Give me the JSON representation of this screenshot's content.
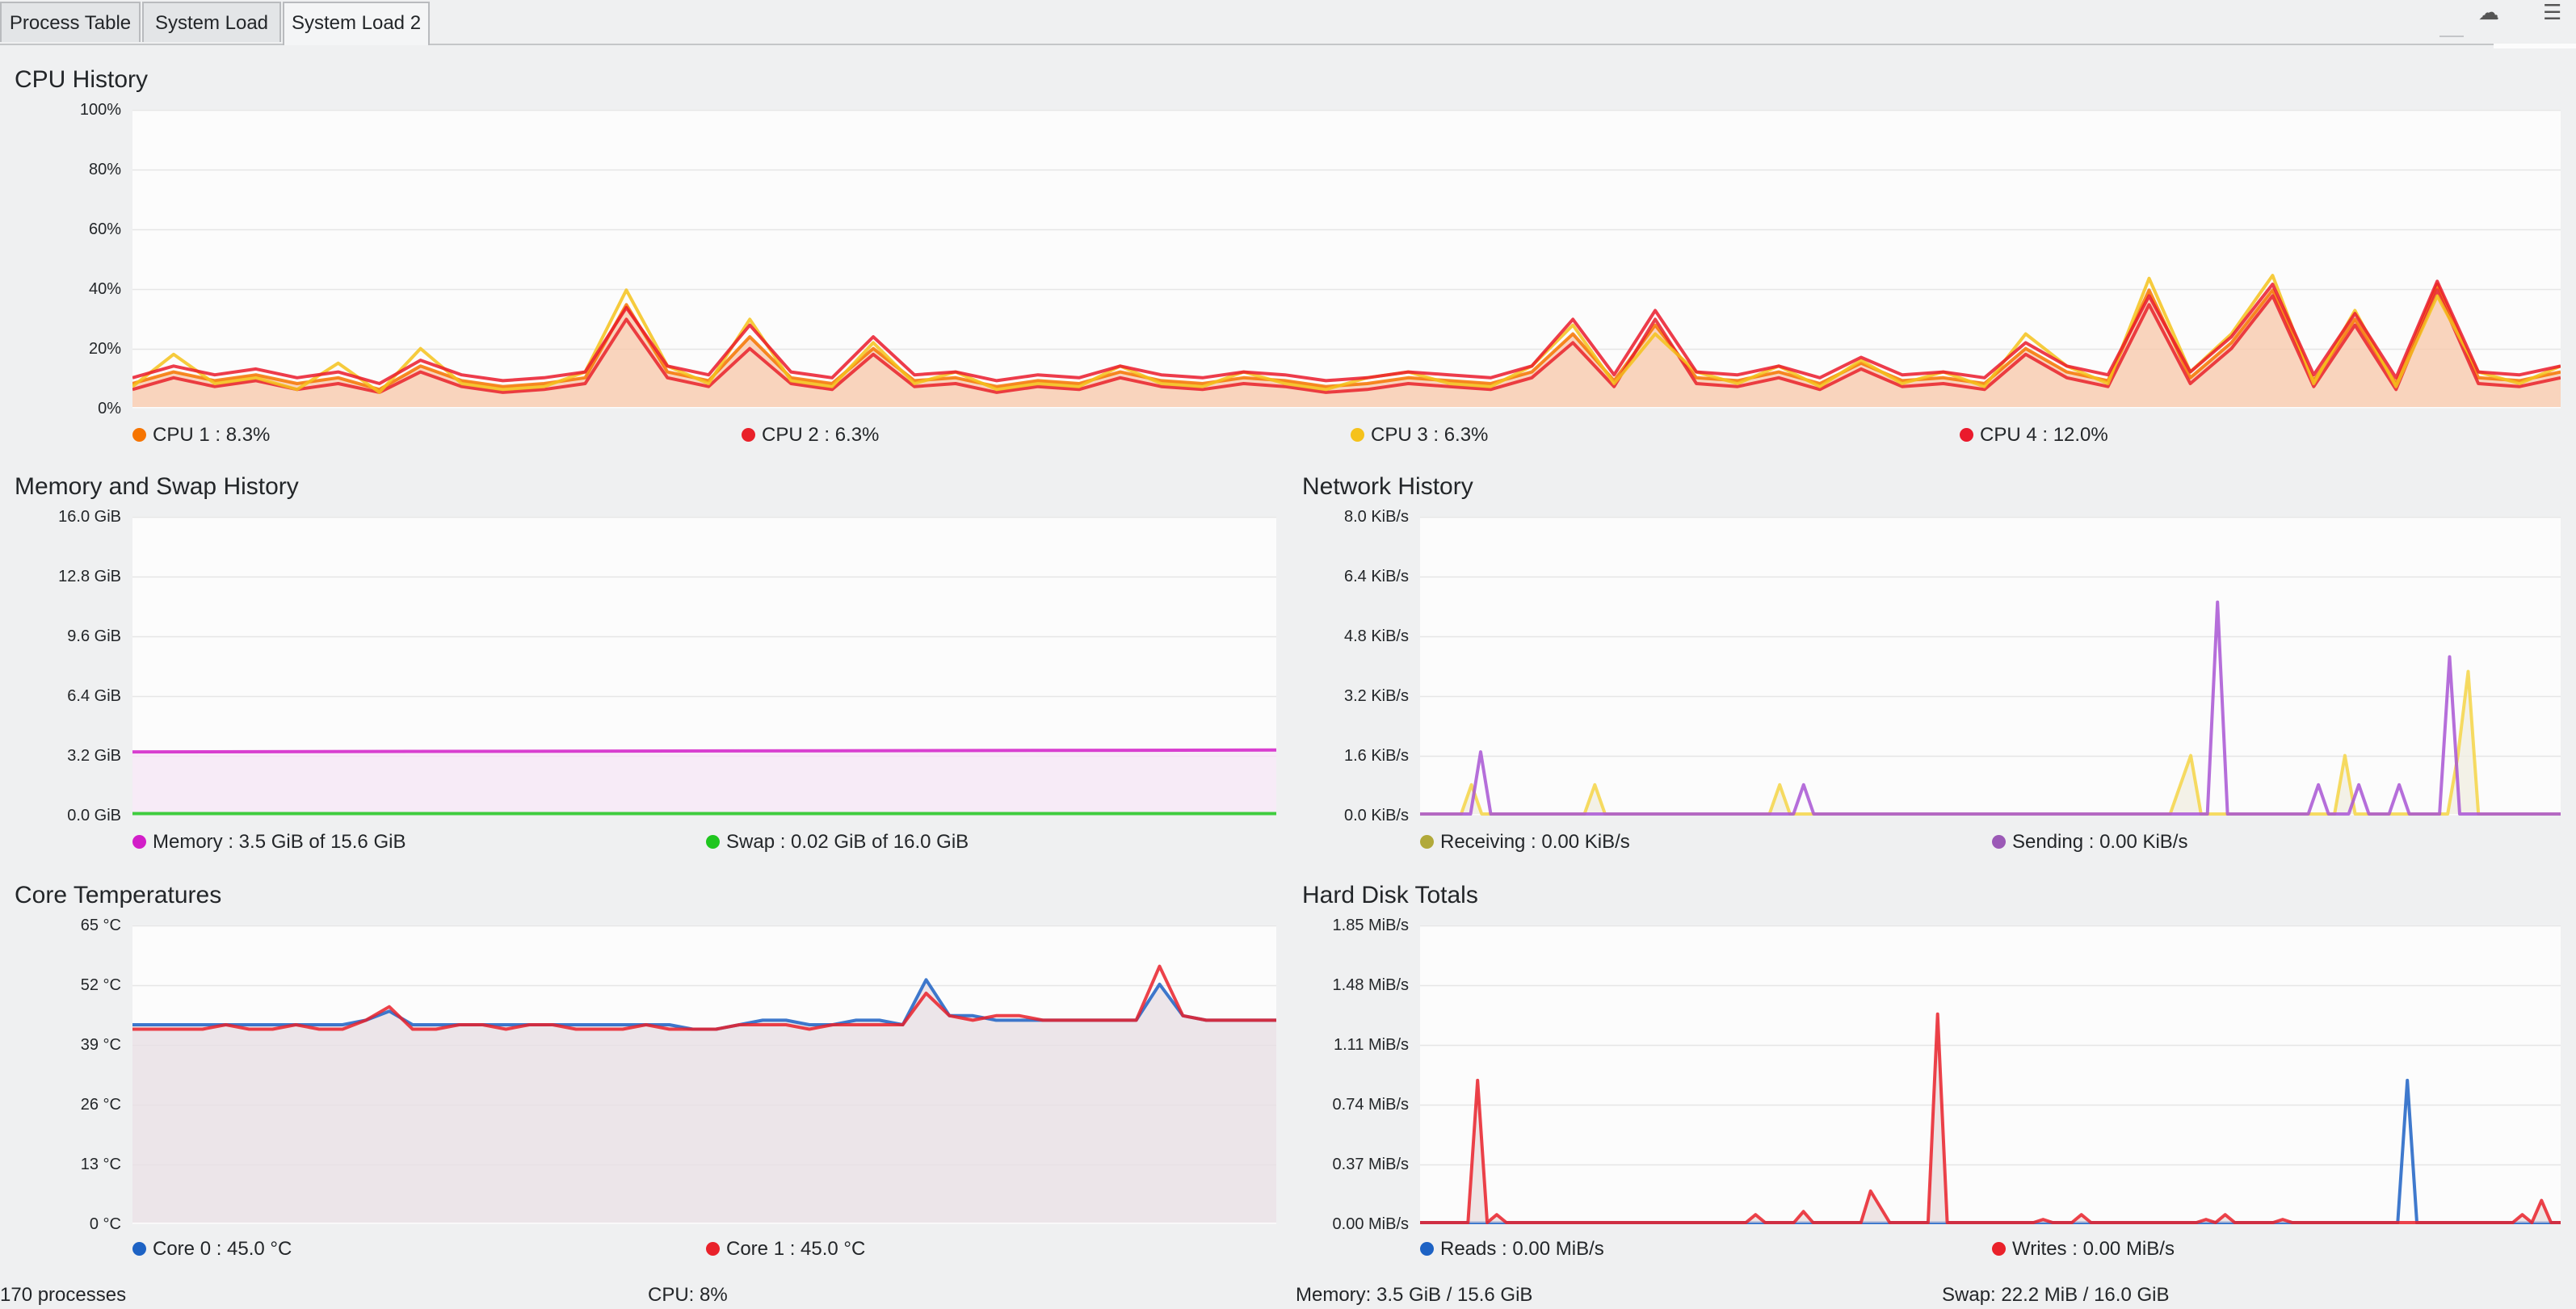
{
  "tabs": [
    {
      "label": "Process Table",
      "active": false
    },
    {
      "label": "System Load",
      "active": false
    },
    {
      "label": "System Load 2",
      "active": true
    }
  ],
  "cpu_history": {
    "title": "CPU History",
    "y_labels": [
      "100%",
      "80%",
      "60%",
      "40%",
      "20%",
      "0%"
    ],
    "legend": [
      {
        "label": "CPU 1 : 8.3%",
        "color": "#f67400"
      },
      {
        "label": "CPU 2 : 6.3%",
        "color": "#e9212a"
      },
      {
        "label": "CPU 3 : 6.3%",
        "color": "#f5c21b"
      },
      {
        "label": "CPU 4 : 12.0%",
        "color": "#ea1a2c"
      }
    ]
  },
  "memory_history": {
    "title": "Memory and Swap History",
    "y_labels": [
      "16.0 GiB",
      "12.8 GiB",
      "9.6 GiB",
      "6.4 GiB",
      "3.2 GiB",
      "0.0 GiB"
    ],
    "legend": [
      {
        "label": "Memory : 3.5 GiB of 15.6 GiB",
        "color": "#d21ec8"
      },
      {
        "label": "Swap : 0.02 GiB of 16.0 GiB",
        "color": "#1fc61f"
      }
    ]
  },
  "network_history": {
    "title": "Network History",
    "y_labels": [
      "8.0 KiB/s",
      "6.4 KiB/s",
      "4.8 KiB/s",
      "3.2 KiB/s",
      "1.6 KiB/s",
      "0.0 KiB/s"
    ],
    "legend": [
      {
        "label": "Receiving : 0.00 KiB/s",
        "color": "#b1a93a"
      },
      {
        "label": "Sending : 0.00 KiB/s",
        "color": "#9b59b6"
      }
    ]
  },
  "core_temperatures": {
    "title": "Core Temperatures",
    "y_labels": [
      "65 °C",
      "52 °C",
      "39 °C",
      "26 °C",
      "13 °C",
      "0 °C"
    ],
    "legend": [
      {
        "label": "Core 0 : 45.0 °C",
        "color": "#1d62c4"
      },
      {
        "label": "Core 1 : 45.0 °C",
        "color": "#e9212a"
      }
    ]
  },
  "hard_disk_totals": {
    "title": "Hard Disk Totals",
    "y_labels": [
      "1.85 MiB/s",
      "1.48 MiB/s",
      "1.11 MiB/s",
      "0.74 MiB/s",
      "0.37 MiB/s",
      "0.00 MiB/s"
    ],
    "legend": [
      {
        "label": "Reads : 0.00 MiB/s",
        "color": "#1d62c4"
      },
      {
        "label": "Writes : 0.00 MiB/s",
        "color": "#e9212a"
      }
    ]
  },
  "status_bar": {
    "processes": "170 processes",
    "cpu": "CPU: 8%",
    "memory": "Memory: 3.5 GiB / 15.6 GiB",
    "swap": "Swap: 22.2 MiB / 16.0 GiB"
  },
  "chart_data": [
    {
      "type": "line",
      "title": "CPU History",
      "ylim": [
        0,
        100
      ],
      "y_unit": "%",
      "x_count": 60,
      "grid": true,
      "series": [
        {
          "name": "CPU 1 : 8.3%",
          "color": "#f67400",
          "fill": "#f8c7a8",
          "values": [
            8,
            12,
            9,
            11,
            8,
            10,
            6,
            14,
            9,
            7,
            8,
            10,
            35,
            12,
            9,
            24,
            10,
            8,
            20,
            9,
            10,
            7,
            9,
            8,
            12,
            9,
            8,
            10,
            9,
            7,
            8,
            10,
            9,
            8,
            12,
            25,
            9,
            28,
            10,
            9,
            12,
            8,
            15,
            9,
            10,
            8,
            20,
            12,
            9,
            40,
            10,
            22,
            40,
            9,
            30,
            8,
            42,
            10,
            9,
            12
          ]
        },
        {
          "name": "CPU 2 : 6.3%",
          "color": "#e9212a",
          "fill": "none",
          "values": [
            6,
            10,
            7,
            9,
            6,
            8,
            5,
            12,
            7,
            5,
            6,
            8,
            30,
            10,
            7,
            20,
            8,
            6,
            18,
            7,
            8,
            5,
            7,
            6,
            10,
            7,
            6,
            8,
            7,
            5,
            6,
            8,
            7,
            6,
            10,
            22,
            7,
            30,
            8,
            7,
            10,
            6,
            13,
            7,
            8,
            6,
            18,
            10,
            7,
            35,
            8,
            20,
            38,
            7,
            28,
            6,
            40,
            8,
            7,
            10
          ]
        },
        {
          "name": "CPU 3 : 6.3%",
          "color": "#f5c21b",
          "fill": "none",
          "values": [
            7,
            18,
            8,
            10,
            6,
            15,
            5,
            20,
            8,
            6,
            7,
            12,
            40,
            14,
            8,
            30,
            9,
            7,
            22,
            8,
            12,
            6,
            8,
            7,
            14,
            8,
            7,
            12,
            8,
            6,
            10,
            12,
            8,
            7,
            14,
            28,
            8,
            25,
            12,
            8,
            14,
            7,
            16,
            8,
            12,
            7,
            25,
            14,
            8,
            44,
            12,
            25,
            45,
            8,
            33,
            7,
            38,
            12,
            8,
            14
          ]
        },
        {
          "name": "CPU 4 : 12.0%",
          "color": "#ea1a2c",
          "fill": "none",
          "values": [
            10,
            14,
            11,
            13,
            10,
            12,
            8,
            16,
            11,
            9,
            10,
            12,
            34,
            14,
            11,
            28,
            12,
            10,
            24,
            11,
            12,
            9,
            11,
            10,
            14,
            11,
            10,
            12,
            11,
            9,
            10,
            12,
            11,
            10,
            14,
            30,
            11,
            33,
            12,
            11,
            14,
            10,
            17,
            11,
            12,
            10,
            22,
            14,
            11,
            38,
            12,
            24,
            42,
            11,
            32,
            10,
            43,
            12,
            11,
            14
          ]
        }
      ]
    },
    {
      "type": "area",
      "title": "Memory and Swap History",
      "ylim": [
        0,
        16
      ],
      "y_unit": "GiB",
      "x_count": 2,
      "grid": true,
      "series": [
        {
          "name": "Memory : 3.5 GiB of 15.6 GiB",
          "color": "#d21ec8",
          "fill": "#f5e6f6",
          "values": [
            3.4,
            3.5
          ]
        },
        {
          "name": "Swap : 0.02 GiB of 16.0 GiB",
          "color": "#1fc61f",
          "fill": "none",
          "values": [
            0.02,
            0.02
          ]
        }
      ]
    },
    {
      "type": "line",
      "title": "Network History",
      "ylim": [
        0,
        8
      ],
      "y_unit": "KiB/s",
      "x_count": 110,
      "grid": true,
      "series": [
        {
          "name": "Receiving : 0.00 KiB/s",
          "color": "#f5d547",
          "fill": "#f0ede0",
          "values": [
            0,
            0,
            0,
            0,
            0,
            0.8,
            0,
            0,
            0,
            0,
            0,
            0,
            0,
            0,
            0,
            0,
            0,
            0.8,
            0,
            0,
            0,
            0,
            0,
            0,
            0,
            0,
            0,
            0,
            0,
            0,
            0,
            0,
            0,
            0,
            0,
            0.8,
            0,
            0,
            0,
            0,
            0,
            0,
            0,
            0,
            0,
            0,
            0,
            0,
            0,
            0,
            0,
            0,
            0,
            0,
            0,
            0,
            0,
            0,
            0,
            0,
            0,
            0,
            0,
            0,
            0,
            0,
            0,
            0,
            0,
            0,
            0,
            0,
            0,
            0,
            0.8,
            1.6,
            0,
            0,
            0,
            0,
            0,
            0,
            0,
            0,
            0,
            0,
            0,
            0,
            0,
            0,
            1.6,
            0,
            0,
            0,
            0,
            0,
            0,
            0,
            0,
            0,
            0,
            1.6,
            3.9,
            0,
            0,
            0,
            0,
            0,
            0,
            0,
            0,
            0
          ]
        },
        {
          "name": "Sending : 0.00 KiB/s",
          "color": "#a855d4",
          "fill": "none",
          "values": [
            0,
            0,
            0,
            0,
            0,
            0,
            1.7,
            0,
            0,
            0,
            0,
            0,
            0,
            0,
            0,
            0,
            0,
            0,
            0,
            0,
            0,
            0,
            0,
            0,
            0,
            0,
            0,
            0,
            0,
            0,
            0,
            0,
            0,
            0,
            0,
            0,
            0,
            0,
            0.8,
            0,
            0,
            0,
            0,
            0,
            0,
            0,
            0,
            0,
            0,
            0,
            0,
            0,
            0,
            0,
            0,
            0,
            0,
            0,
            0,
            0,
            0,
            0,
            0,
            0,
            0,
            0,
            0,
            0,
            0,
            0,
            0,
            0,
            0,
            0,
            0,
            0,
            0,
            0,
            0,
            5.8,
            0,
            0,
            0,
            0,
            0,
            0,
            0,
            0,
            0,
            0.8,
            0,
            0,
            0,
            0.8,
            0,
            0,
            0,
            0.8,
            0,
            0,
            0,
            0,
            4.3,
            0,
            0,
            0,
            0,
            0,
            0,
            0,
            0,
            0,
            0,
            0
          ]
        }
      ]
    },
    {
      "type": "area",
      "title": "Core Temperatures",
      "ylim": [
        0,
        65
      ],
      "y_unit": "°C",
      "x_count": 50,
      "grid": true,
      "series": [
        {
          "name": "Core 0 : 45.0 °C",
          "color": "#1d62c4",
          "fill": "#e7dde3",
          "values": [
            44,
            44,
            44,
            44,
            44,
            44,
            44,
            44,
            44,
            44,
            45,
            47,
            44,
            44,
            44,
            44,
            44,
            44,
            44,
            44,
            44,
            44,
            44,
            44,
            43,
            43,
            44,
            45,
            45,
            44,
            44,
            45,
            45,
            44,
            54,
            46,
            46,
            45,
            45,
            45,
            45,
            45,
            45,
            45,
            53,
            46,
            45,
            45,
            45,
            45
          ]
        },
        {
          "name": "Core 1 : 45.0 °C",
          "color": "#e9212a",
          "fill": "none",
          "values": [
            43,
            43,
            43,
            43,
            44,
            43,
            43,
            44,
            43,
            43,
            45,
            48,
            43,
            43,
            44,
            44,
            43,
            44,
            44,
            43,
            43,
            43,
            44,
            43,
            43,
            43,
            44,
            44,
            44,
            43,
            44,
            44,
            44,
            44,
            51,
            46,
            45,
            46,
            46,
            45,
            45,
            45,
            45,
            45,
            57,
            46,
            45,
            45,
            45,
            45
          ]
        }
      ]
    },
    {
      "type": "line",
      "title": "Hard Disk Totals",
      "ylim": [
        0,
        1.85
      ],
      "y_unit": "MiB/s",
      "x_count": 120,
      "grid": true,
      "series": [
        {
          "name": "Reads : 0.00 MiB/s",
          "color": "#1d62c4",
          "fill": "none",
          "values": [
            0,
            0,
            0,
            0,
            0,
            0,
            0,
            0,
            0,
            0,
            0,
            0,
            0,
            0,
            0,
            0,
            0,
            0,
            0,
            0,
            0,
            0,
            0,
            0,
            0,
            0,
            0,
            0,
            0,
            0,
            0,
            0,
            0,
            0,
            0,
            0,
            0,
            0,
            0,
            0,
            0,
            0,
            0,
            0,
            0,
            0,
            0,
            0,
            0,
            0,
            0,
            0,
            0,
            0,
            0,
            0,
            0,
            0,
            0,
            0,
            0,
            0,
            0,
            0,
            0,
            0,
            0,
            0,
            0,
            0,
            0,
            0,
            0,
            0,
            0,
            0,
            0,
            0,
            0,
            0,
            0,
            0,
            0,
            0,
            0,
            0,
            0,
            0,
            0,
            0,
            0,
            0,
            0,
            0,
            0,
            0,
            0,
            0,
            0,
            0,
            0,
            0,
            0,
            0.9,
            0,
            0,
            0,
            0,
            0,
            0,
            0,
            0,
            0,
            0,
            0,
            0,
            0,
            0,
            0,
            0
          ]
        },
        {
          "name": "Writes : 0.00 MiB/s",
          "color": "#e9212a",
          "fill": "#eadcdc",
          "values": [
            0,
            0,
            0,
            0,
            0,
            0,
            0.9,
            0,
            0.05,
            0,
            0,
            0,
            0,
            0,
            0,
            0,
            0,
            0,
            0,
            0,
            0,
            0,
            0,
            0,
            0,
            0,
            0,
            0,
            0,
            0,
            0,
            0,
            0,
            0,
            0,
            0.05,
            0,
            0,
            0,
            0,
            0.07,
            0,
            0,
            0,
            0,
            0,
            0,
            0.2,
            0.1,
            0,
            0,
            0,
            0,
            0,
            1.32,
            0,
            0,
            0,
            0,
            0,
            0,
            0,
            0,
            0,
            0,
            0.02,
            0,
            0,
            0,
            0.05,
            0,
            0,
            0,
            0,
            0,
            0,
            0,
            0,
            0,
            0,
            0,
            0,
            0.02,
            0,
            0.05,
            0,
            0,
            0,
            0,
            0,
            0.02,
            0,
            0,
            0,
            0,
            0,
            0,
            0,
            0,
            0,
            0,
            0,
            0,
            0,
            0,
            0,
            0,
            0,
            0,
            0,
            0,
            0,
            0,
            0,
            0,
            0.05,
            0,
            0.14,
            0,
            0
          ]
        }
      ]
    }
  ]
}
